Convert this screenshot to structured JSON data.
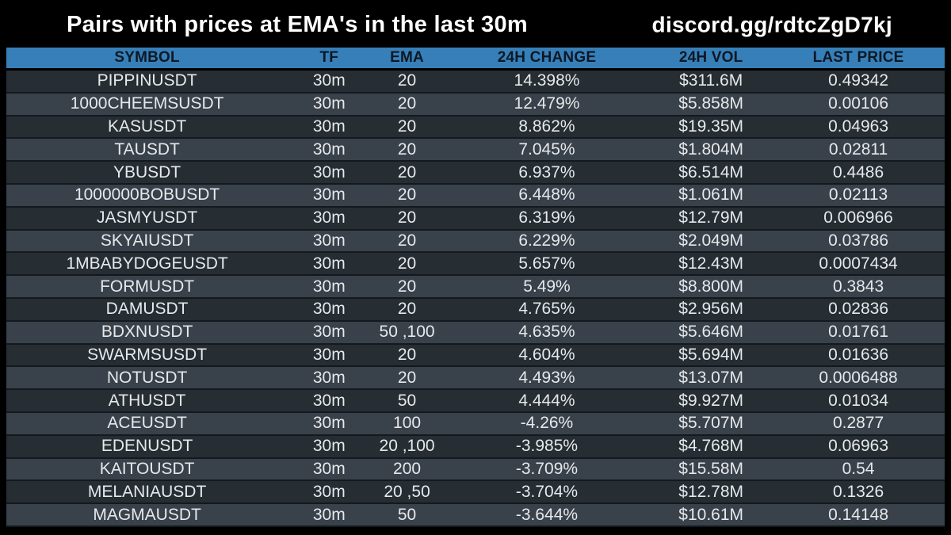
{
  "title": "Pairs with prices at EMA's in the last 30m",
  "watermark": "discord.gg/rdtcZgD7kj",
  "colors": {
    "background": "#000000",
    "header_bar": "#377fb8",
    "header_text": "#0d1824",
    "row_dark": "#262d33",
    "row_light": "#39414a",
    "row_text": "#e6e9eb",
    "title_text": "#ffffff"
  },
  "chart_data": {
    "type": "table",
    "title": "Pairs with prices at EMA's in the last 30m",
    "columns": [
      "SYMBOL",
      "TF",
      "EMA",
      "24H CHANGE",
      "24H VOL",
      "LAST PRICE"
    ],
    "rows": [
      [
        "PIPPINUSDT",
        "30m",
        "20",
        "14.398%",
        "$311.6M",
        "0.49342"
      ],
      [
        "1000CHEEMSUSDT",
        "30m",
        "20",
        "12.479%",
        "$5.858M",
        "0.00106"
      ],
      [
        "KASUSDT",
        "30m",
        "20",
        "8.862%",
        "$19.35M",
        "0.04963"
      ],
      [
        "TAUSDT",
        "30m",
        "20",
        "7.045%",
        "$1.804M",
        "0.02811"
      ],
      [
        "YBUSDT",
        "30m",
        "20",
        "6.937%",
        "$6.514M",
        "0.4486"
      ],
      [
        "1000000BOBUSDT",
        "30m",
        "20",
        "6.448%",
        "$1.061M",
        "0.02113"
      ],
      [
        "JASMYUSDT",
        "30m",
        "20",
        "6.319%",
        "$12.79M",
        "0.006966"
      ],
      [
        "SKYAIUSDT",
        "30m",
        "20",
        "6.229%",
        "$2.049M",
        "0.03786"
      ],
      [
        "1MBABYDOGEUSDT",
        "30m",
        "20",
        "5.657%",
        "$12.43M",
        "0.0007434"
      ],
      [
        "FORMUSDT",
        "30m",
        "20",
        "5.49%",
        "$8.800M",
        "0.3843"
      ],
      [
        "DAMUSDT",
        "30m",
        "20",
        "4.765%",
        "$2.956M",
        "0.02836"
      ],
      [
        "BDXNUSDT",
        "30m",
        "50 ,100",
        "4.635%",
        "$5.646M",
        "0.01761"
      ],
      [
        "SWARMSUSDT",
        "30m",
        "20",
        "4.604%",
        "$5.694M",
        "0.01636"
      ],
      [
        "NOTUSDT",
        "30m",
        "20",
        "4.493%",
        "$13.07M",
        "0.0006488"
      ],
      [
        "ATHUSDT",
        "30m",
        "50",
        "4.444%",
        "$9.927M",
        "0.01034"
      ],
      [
        "ACEUSDT",
        "30m",
        "100",
        "-4.26%",
        "$5.707M",
        "0.2877"
      ],
      [
        "EDENUSDT",
        "30m",
        "20 ,100",
        "-3.985%",
        "$4.768M",
        "0.06963"
      ],
      [
        "KAITOUSDT",
        "30m",
        "200",
        "-3.709%",
        "$15.58M",
        "0.54"
      ],
      [
        "MELANIAUSDT",
        "30m",
        "20 ,50",
        "-3.704%",
        "$12.78M",
        "0.1326"
      ],
      [
        "MAGMAUSDT",
        "30m",
        "50",
        "-3.644%",
        "$10.61M",
        "0.14148"
      ]
    ]
  }
}
